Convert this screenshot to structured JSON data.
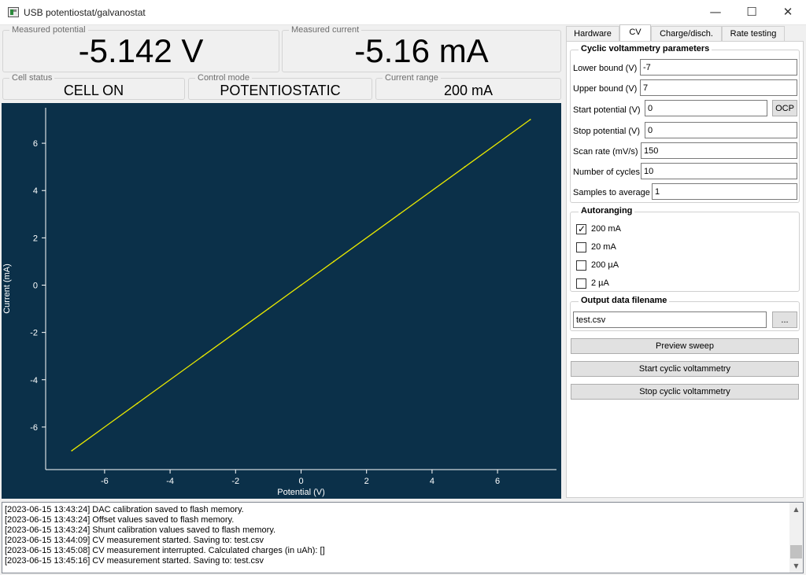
{
  "window": {
    "title": "USB potentiostat/galvanostat",
    "minimize_glyph": "—",
    "maximize_glyph": "☐",
    "close_glyph": "✕"
  },
  "readouts": {
    "potential": {
      "label": "Measured potential",
      "value": "-5.142 V"
    },
    "current": {
      "label": "Measured current",
      "value": "-5.16 mA"
    },
    "cell_status": {
      "label": "Cell status",
      "value": "CELL ON"
    },
    "control_mode": {
      "label": "Control mode",
      "value": "POTENTIOSTATIC"
    },
    "current_range": {
      "label": "Current range",
      "value": "200 mA"
    }
  },
  "chart_data": {
    "type": "line",
    "xlabel": "Potential (V)",
    "ylabel": "Current (mA)",
    "xlim": [
      -7.8,
      7.8
    ],
    "ylim": [
      -7.8,
      7.5
    ],
    "xticks": [
      -6,
      -4,
      -2,
      0,
      2,
      4,
      6
    ],
    "yticks": [
      -6,
      -4,
      -2,
      0,
      2,
      4,
      6
    ],
    "grid": false,
    "background": "#0b3049",
    "line_color": "#e8e800",
    "series": [
      {
        "x": [
          -7,
          -5,
          -3,
          -1,
          0,
          1,
          3,
          5,
          7
        ],
        "y": [
          -7.0,
          -5.0,
          -3.0,
          -1.0,
          0.0,
          1.0,
          3.0,
          5.0,
          7.0
        ]
      }
    ]
  },
  "tabs": [
    {
      "label": "Hardware",
      "active": false
    },
    {
      "label": "CV",
      "active": true
    },
    {
      "label": "Charge/disch.",
      "active": false
    },
    {
      "label": "Rate testing",
      "active": false
    }
  ],
  "cv": {
    "group_title": "Cyclic voltammetry parameters",
    "lower_bound": {
      "label": "Lower bound (V)",
      "value": "-7"
    },
    "upper_bound": {
      "label": "Upper bound (V)",
      "value": "7"
    },
    "start_potential": {
      "label": "Start potential (V)",
      "value": "0"
    },
    "ocp_button": "OCP",
    "stop_potential": {
      "label": "Stop potential (V)",
      "value": "0"
    },
    "scan_rate": {
      "label": "Scan rate (mV/s)",
      "value": "150"
    },
    "num_cycles": {
      "label": "Number of cycles",
      "value": "10"
    },
    "samples_avg": {
      "label": "Samples to average",
      "value": "1"
    }
  },
  "autoranging": {
    "title": "Autoranging",
    "options": [
      {
        "label": "200 mA",
        "checked": true
      },
      {
        "label": "20 mA",
        "checked": false
      },
      {
        "label": "200 µA",
        "checked": false
      },
      {
        "label": "2 µA",
        "checked": false
      }
    ]
  },
  "output": {
    "title": "Output data filename",
    "filename": "test.csv",
    "browse_label": "..."
  },
  "actions": {
    "preview": "Preview sweep",
    "start": "Start cyclic voltammetry",
    "stop": "Stop cyclic voltammetry"
  },
  "log": [
    "[2023-06-15 13:43:24] DAC calibration saved to flash memory.",
    "[2023-06-15 13:43:24] Offset values saved to flash memory.",
    "[2023-06-15 13:43:24] Shunt calibration values saved to flash memory.",
    "[2023-06-15 13:44:09] CV measurement started. Saving to: test.csv",
    "[2023-06-15 13:45:08] CV measurement interrupted. Calculated charges (in uAh): []",
    "[2023-06-15 13:45:16] CV measurement started. Saving to: test.csv"
  ],
  "scrollbar": {
    "up_glyph": "▲",
    "down_glyph": "▼"
  }
}
